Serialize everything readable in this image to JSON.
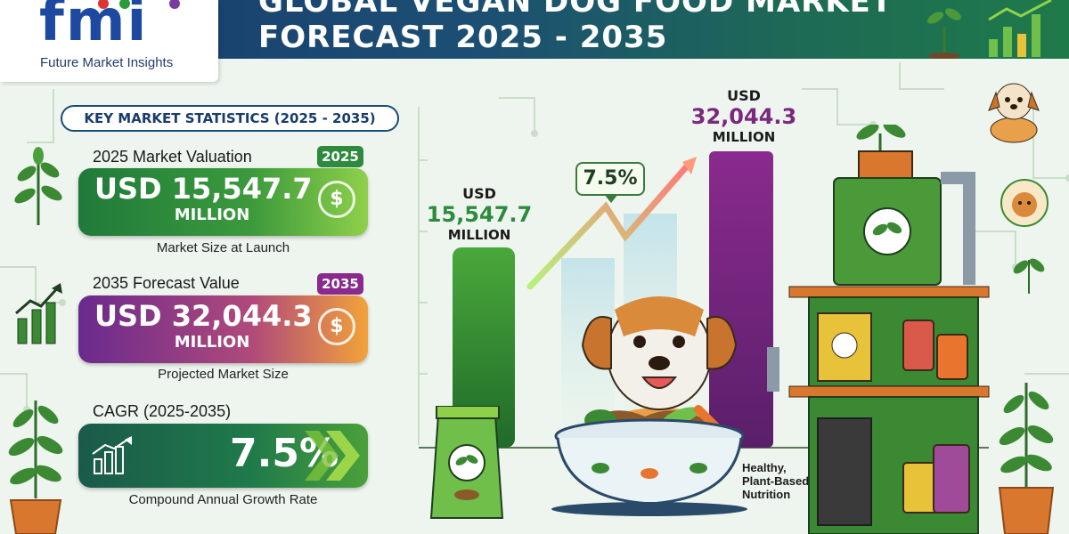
{
  "header": {
    "logo_letters": "fmi",
    "logo_subtitle": "Future Market Insights",
    "title_line1": "GLOBAL VEGAN DOG FOOD MARKET",
    "title_line2": "FORECAST 2025 - 2035"
  },
  "stats": {
    "section_title": "KEY MARKET STATISTICS (2025 - 2035)",
    "valuation": {
      "label": "2025 Market Valuation",
      "year": "2025",
      "value": "USD 15,547.7",
      "unit": "MILLION",
      "caption": "Market Size at Launch",
      "color": "#2e8b3e"
    },
    "forecast": {
      "label": "2035 Forecast Value",
      "year": "2035",
      "value": "USD 32,044.3",
      "unit": "MILLION",
      "caption": "Projected Market Size",
      "color": "#8a2a8e"
    },
    "cagr": {
      "label": "CAGR (2025-2035)",
      "value": "7.5%",
      "caption": "Compound Annual Growth Rate",
      "color": "#1f6f4a"
    }
  },
  "chart": {
    "bar1": {
      "currency": "USD",
      "value": "15,547.7",
      "unit": "MILLION",
      "color": "#2e8b3e"
    },
    "bar2": {
      "currency": "USD",
      "value": "32,044.3",
      "unit": "MILLION",
      "color": "#7a2880"
    },
    "growth_chip": "7.5%"
  },
  "illustration": {
    "nutrition_line1": "Healthy,",
    "nutrition_line2": "Plant-Based",
    "nutrition_line3": "Nutrition"
  },
  "icons": [
    "sprout-icon",
    "bar-chart-icon",
    "dollar-coin-icon",
    "growth-arrow-icon",
    "dog-icon",
    "leaf-icon"
  ]
}
